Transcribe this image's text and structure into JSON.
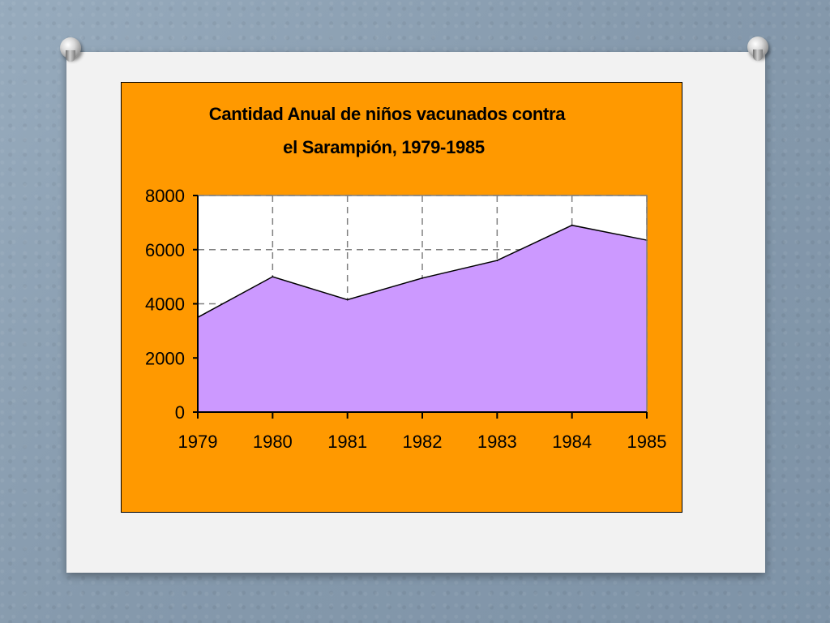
{
  "chart_data": {
    "type": "area",
    "title_line1": "Cantidad Anual de niños vacunados contra",
    "title_line2": "el Sarampión, 1979-1985",
    "xlabel": "",
    "ylabel": "",
    "x": [
      "1979",
      "1980",
      "1981",
      "1982",
      "1983",
      "1984",
      "1985"
    ],
    "values": [
      3500,
      5000,
      4150,
      4950,
      5600,
      6900,
      6350
    ],
    "ylim": [
      0,
      8000
    ],
    "yticks": [
      "0",
      "2000",
      "4000",
      "6000",
      "8000"
    ],
    "grid": true,
    "legend": "none",
    "colors": {
      "area_fill": "#cc99ff",
      "panel": "#ff9900",
      "plot_bg": "#ffffff",
      "gridline": "#808080"
    }
  }
}
